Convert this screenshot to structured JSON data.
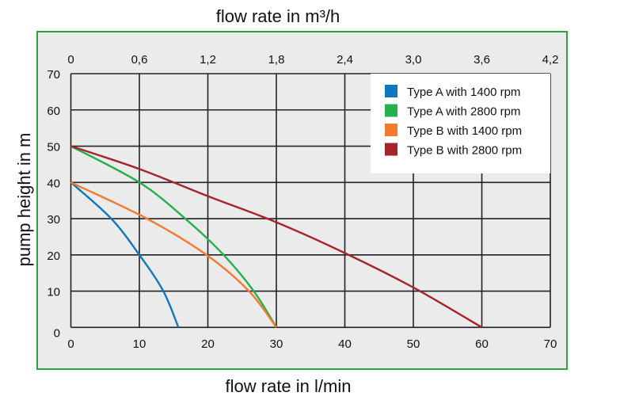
{
  "chart_data": {
    "type": "line",
    "title_top": "flow rate in m³/h",
    "xlabel": "flow rate in l/min",
    "ylabel": "pump height in m",
    "xlim": [
      0,
      70
    ],
    "ylim": [
      0,
      70
    ],
    "x_ticks": [
      "0",
      "10",
      "20",
      "30",
      "40",
      "50",
      "60",
      "70"
    ],
    "x_tick_values": [
      0,
      10,
      20,
      30,
      40,
      50,
      60,
      70
    ],
    "top_ticks": [
      "0",
      "0,6",
      "1,2",
      "1,8",
      "2,4",
      "3,0",
      "3,6",
      "4,2"
    ],
    "y_ticks": [
      "0",
      "10",
      "20",
      "30",
      "40",
      "50",
      "60",
      "70"
    ],
    "y_tick_values": [
      0,
      10,
      20,
      30,
      40,
      50,
      60,
      70
    ],
    "grid": true,
    "legend_position": "top-right",
    "series": [
      {
        "name": "Type A with 1400 rpm",
        "color": "#0e77bd",
        "x": [
          0,
          5.9,
          10,
          13.5,
          15.7
        ],
        "y": [
          40,
          30,
          20,
          10,
          0
        ]
      },
      {
        "name": "Type A with 2800 rpm",
        "color": "#22b14c",
        "x": [
          0,
          10,
          16.7,
          22.3,
          26.7,
          30
        ],
        "y": [
          50,
          40,
          30,
          20,
          10,
          0
        ]
      },
      {
        "name": "Type B with 1400 rpm",
        "color": "#f47a30",
        "x": [
          0,
          11.1,
          19.8,
          26,
          30
        ],
        "y": [
          40,
          30,
          20,
          10,
          0
        ]
      },
      {
        "name": "Type B with 2800 rpm",
        "color": "#a8232a",
        "x": [
          0,
          10,
          20,
          30,
          40,
          50,
          60
        ],
        "y": [
          50,
          43.7,
          36.2,
          29,
          20.5,
          11,
          0
        ]
      }
    ]
  }
}
